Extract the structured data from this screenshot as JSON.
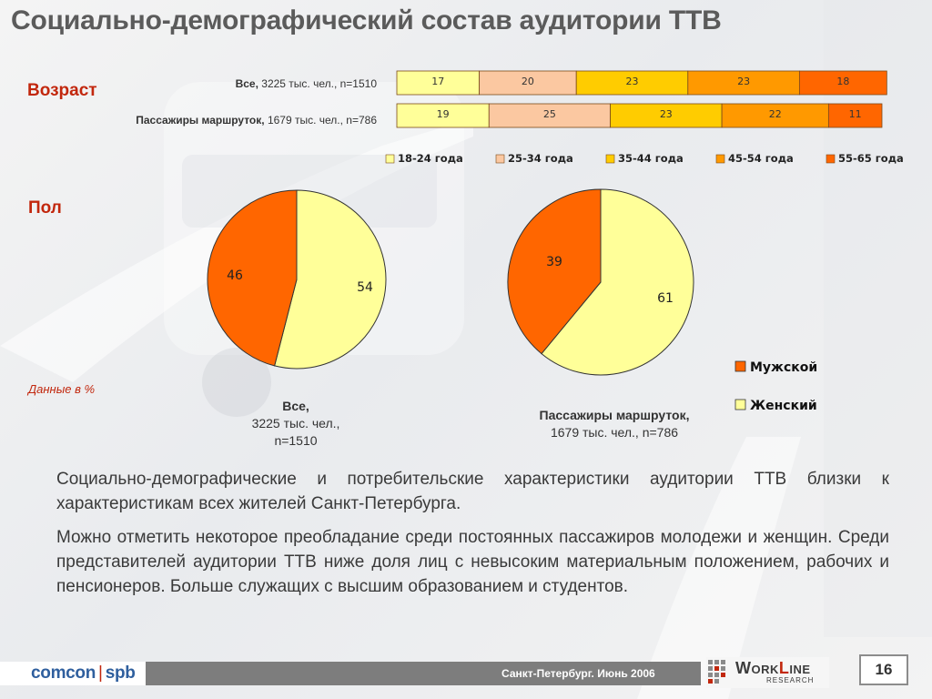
{
  "title": "Социально-демографический состав аудитории ТТВ",
  "sections": {
    "age_label": "Возраст",
    "sex_label": "Пол"
  },
  "rows": [
    {
      "bold": "Все,",
      "rest": " 3225 тыс. чел., n=1510"
    },
    {
      "bold": "Пассажиры маршруток,",
      "rest": " 1679 тыс. чел., n=786"
    }
  ],
  "note": "Данные в %",
  "pie_captions": [
    {
      "bold": "Все,",
      "line2": "3225 тыс. чел.,",
      "line3": "n=1510"
    },
    {
      "bold": "Пассажиры маршруток,",
      "line2": "1679 тыс. чел., n=786"
    }
  ],
  "body": {
    "p1": "Социально-демографические и потребительские характеристики аудитории ТТВ близки к характеристикам всех жителей Санкт-Петербурга.",
    "p2": "Можно отметить некоторое преобладание среди постоянных пассажиров молодежи и женщин. Среди представителей аудитории ТТВ ниже доля лиц с невысоким материальным положением, рабочих и пенсионеров. Больше служащих с высшим образованием и студентов."
  },
  "footer": {
    "logo_left": "comcon",
    "logo_sep": "|",
    "logo_right": "spb",
    "text": "Санкт-Петербург. Июнь 2006",
    "logo_work_1": "W",
    "logo_work_2": "ORK",
    "logo_work_3": "L",
    "logo_work_4": "INE",
    "logo_research": "RESEARCH",
    "page": "16"
  },
  "colors": {
    "accent": "#c2270d",
    "age": [
      "#ffff99",
      "#fbc8a1",
      "#ffcc00",
      "#ff9900",
      "#ff6600"
    ],
    "male": "#ff6600",
    "female": "#ffff99"
  },
  "chart_data": [
    {
      "type": "bar",
      "orientation": "horizontal-stacked",
      "categories": [
        "Все",
        "Пассажиры маршруток"
      ],
      "series": [
        {
          "name": "18-24 года",
          "values": [
            17,
            19
          ]
        },
        {
          "name": "25-34 года",
          "values": [
            20,
            25
          ]
        },
        {
          "name": "35-44 года",
          "values": [
            23,
            23
          ]
        },
        {
          "name": "45-54 года",
          "values": [
            23,
            22
          ]
        },
        {
          "name": "55-65 года",
          "values": [
            18,
            11
          ]
        }
      ],
      "legend": "top",
      "grid": false
    },
    {
      "type": "pie",
      "categories": [
        "Мужской",
        "Женский"
      ],
      "values": [
        46,
        54
      ]
    },
    {
      "type": "pie",
      "categories": [
        "Мужской",
        "Женский"
      ],
      "values": [
        39,
        61
      ],
      "legend": "right"
    }
  ]
}
